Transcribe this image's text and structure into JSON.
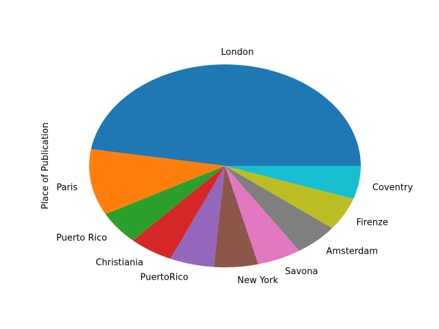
{
  "chart_data": {
    "type": "pie",
    "ylabel": "Place of Publication",
    "slices": [
      {
        "label": "London",
        "value": 9,
        "color": "#1f77b4"
      },
      {
        "label": "Paris",
        "value": 2,
        "color": "#ff7f0e"
      },
      {
        "label": "Puerto Rico",
        "value": 1,
        "color": "#2ca02c"
      },
      {
        "label": "Christiania",
        "value": 1,
        "color": "#d62728"
      },
      {
        "label": "PuertoRico",
        "value": 1,
        "color": "#9467bd"
      },
      {
        "label": "New York",
        "value": 1,
        "color": "#8c564b"
      },
      {
        "label": "Savona",
        "value": 1,
        "color": "#e377c2"
      },
      {
        "label": "Amsterdam",
        "value": 1,
        "color": "#7f7f7f"
      },
      {
        "label": "Firenze",
        "value": 1,
        "color": "#bcbd22"
      },
      {
        "label": "Coventry",
        "value": 1,
        "color": "#17becf"
      }
    ]
  }
}
